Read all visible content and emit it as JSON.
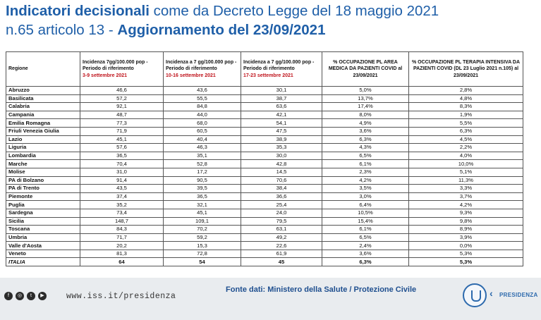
{
  "title": {
    "line1_bold": "Indicatori decisionali",
    "line1_rest": " come da Decreto Legge del 18 maggio 2021",
    "line2_rest": "n.65 articolo 13 - ",
    "line2_bold": "Aggiornamento del 23/09/2021"
  },
  "table": {
    "headers": {
      "regione": "Regione",
      "inc1": "Incidenza 7gg/100.000 pop - Periodo di riferimento",
      "inc1_period": "3-9 settembre 2021",
      "inc2": "Incidenza a 7 gg/100.000 pop - Periodo di riferimento",
      "inc2_period": "10-16 settembre 2021",
      "inc3": "Incidenza a 7 gg/100.000 pop - Periodo di riferimento",
      "inc3_period": "17-23 settembre 2021",
      "occ_med": "% OCCUPAZIONE PL AREA MEDICA DA PAZIENTI COVID al 23/09/2021",
      "occ_ti": "% OCCUPAZIONE PL TERAPIA INTENSIVA DA PAZIENTI COVID (DL 23 Luglio 2021 n.105) al 23/09/2021"
    },
    "rows": [
      [
        "Abruzzo",
        "46,6",
        "43,6",
        "30,1",
        "5,0%",
        "2,8%"
      ],
      [
        "Basilicata",
        "57,2",
        "55,5",
        "38,7",
        "13,7%",
        "4,8%"
      ],
      [
        "Calabria",
        "92,1",
        "84,8",
        "63,6",
        "17,4%",
        "8,3%"
      ],
      [
        "Campania",
        "48,7",
        "44,0",
        "42,1",
        "8,0%",
        "1,9%"
      ],
      [
        "Emilia Romagna",
        "77,3",
        "68,0",
        "54,1",
        "4,9%",
        "5,5%"
      ],
      [
        "Friuli Venezia Giulia",
        "71,9",
        "60,5",
        "47,5",
        "3,6%",
        "6,3%"
      ],
      [
        "Lazio",
        "45,1",
        "40,4",
        "38,9",
        "6,3%",
        "4,5%"
      ],
      [
        "Liguria",
        "57,6",
        "46,3",
        "35,3",
        "4,3%",
        "2,2%"
      ],
      [
        "Lombardia",
        "36,5",
        "35,1",
        "30,0",
        "6,5%",
        "4,0%"
      ],
      [
        "Marche",
        "70,4",
        "52,8",
        "42,8",
        "6,1%",
        "10,0%"
      ],
      [
        "Molise",
        "31,0",
        "17,2",
        "14,5",
        "2,3%",
        "5,1%"
      ],
      [
        "PA di Bolzano",
        "91,4",
        "90,5",
        "70,6",
        "4,2%",
        "11,3%"
      ],
      [
        "PA di Trento",
        "43,5",
        "39,5",
        "38,4",
        "3,5%",
        "3,3%"
      ],
      [
        "Piemonte",
        "37,4",
        "36,5",
        "36,6",
        "3,0%",
        "3,7%"
      ],
      [
        "Puglia",
        "35,2",
        "32,1",
        "25,4",
        "6,4%",
        "4,2%"
      ],
      [
        "Sardegna",
        "73,4",
        "45,1",
        "24,0",
        "10,5%",
        "9,3%"
      ],
      [
        "Sicilia",
        "148,7",
        "109,1",
        "79,5",
        "15,4%",
        "9,8%"
      ],
      [
        "Toscana",
        "84,3",
        "70,2",
        "63,1",
        "6,1%",
        "8,9%"
      ],
      [
        "Umbria",
        "71,7",
        "59,2",
        "49,2",
        "6,5%",
        "3,9%"
      ],
      [
        "Valle d'Aosta",
        "20,2",
        "15,3",
        "22,6",
        "2,4%",
        "0,0%"
      ],
      [
        "Veneto",
        "81,3",
        "72,8",
        "61,9",
        "3,6%",
        "5,3%"
      ]
    ],
    "total": [
      "ITALIA",
      "64",
      "54",
      "45",
      "6,3%",
      "5,3%"
    ]
  },
  "footer": {
    "url": "www.iss.it/presidenza",
    "source": "Fonte dati: Ministero della Salute / Protezione Civile",
    "brand": "PRESIDENZA",
    "social_icons": [
      "facebook-icon",
      "instagram-icon",
      "twitter-icon",
      "youtube-icon"
    ]
  },
  "colors": {
    "title_blue": "#1f5fa8",
    "period_red": "#c0141c",
    "footer_bg": "#e9ecef"
  }
}
